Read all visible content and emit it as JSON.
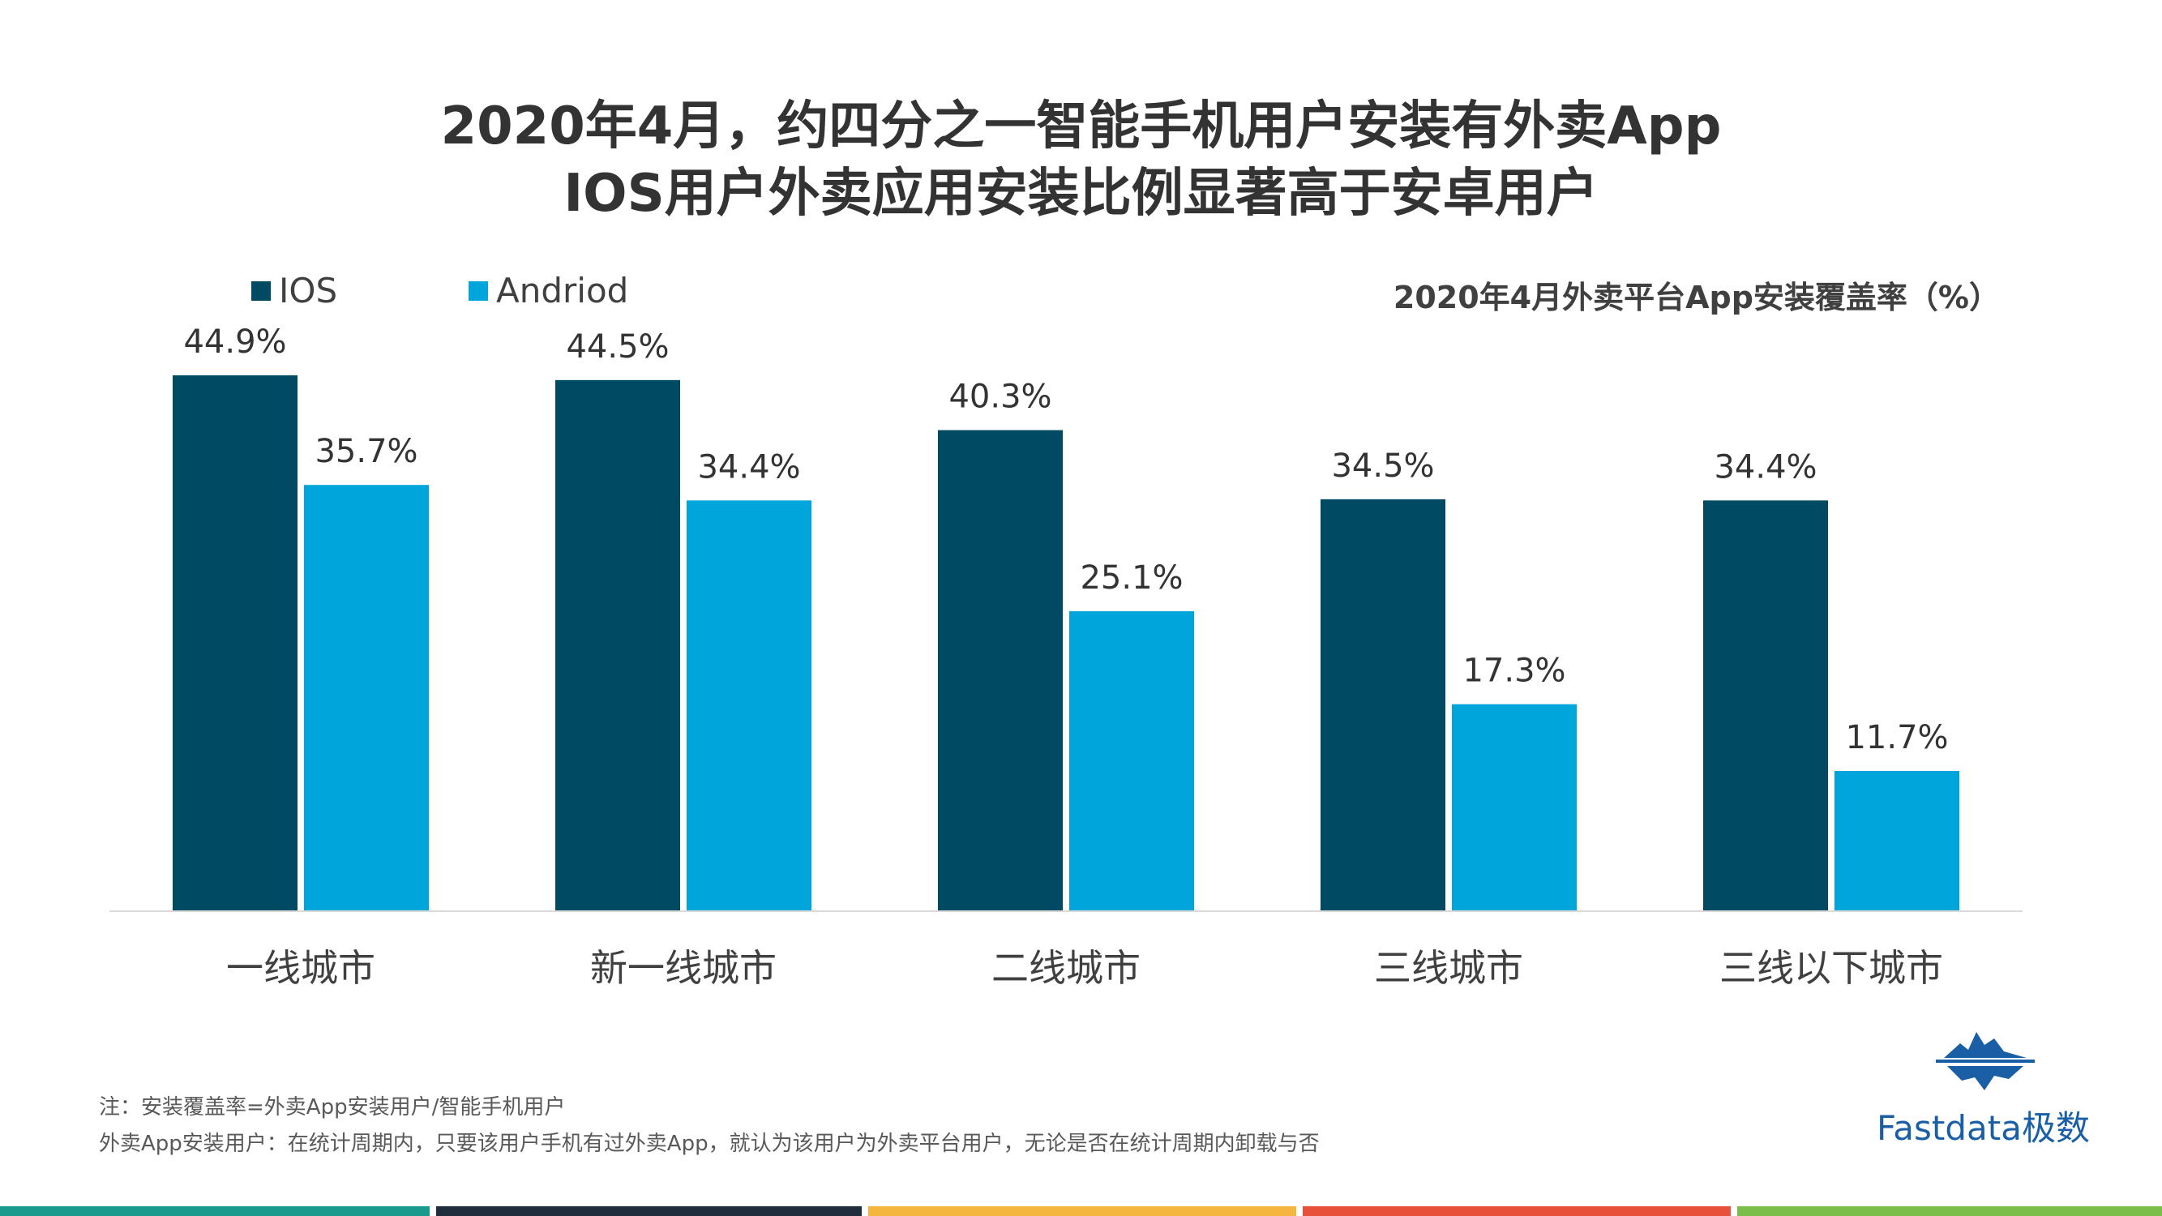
{
  "title_line1": "2020年4月，约四分之一智能手机用户安装有外卖App",
  "title_line2": "IOS用户外卖应用安装比例显著高于安卓用户",
  "chart_data": {
    "type": "bar",
    "title": "2020年4月外卖平台App安装覆盖率（%）",
    "categories": [
      "一线城市",
      "新一线城市",
      "二线城市",
      "三线城市",
      "三线以下城市"
    ],
    "series": [
      {
        "name": "IOS",
        "values": [
          44.9,
          44.5,
          40.3,
          34.5,
          34.4
        ],
        "labels": [
          "44.9%",
          "44.5%",
          "40.3%",
          "34.5%",
          "34.4%"
        ],
        "color": "#004a63"
      },
      {
        "name": "Andriod",
        "values": [
          35.7,
          34.4,
          25.1,
          17.3,
          11.7
        ],
        "labels": [
          "35.7%",
          "34.4%",
          "25.1%",
          "17.3%",
          "11.7%"
        ],
        "color": "#00a5dc"
      }
    ],
    "ylim": [
      0,
      50
    ],
    "grid": false,
    "legend": "top-left"
  },
  "notes": [
    "注：安装覆盖率=外卖App安装用户/智能手机用户",
    "外卖App安装用户：在统计周期内，只要该用户手机有过外卖App，就认为该用户为外卖平台用户，无论是否在统计周期内卸载与否"
  ],
  "logo": {
    "text": "Fastdata极数",
    "icon": "iceberg-icon",
    "color": "#1a5fa6"
  },
  "footer_stripe_colors": [
    "#1a9a8c",
    "#1f2d3d",
    "#f4b63f",
    "#e8503a",
    "#7bbf4a"
  ]
}
